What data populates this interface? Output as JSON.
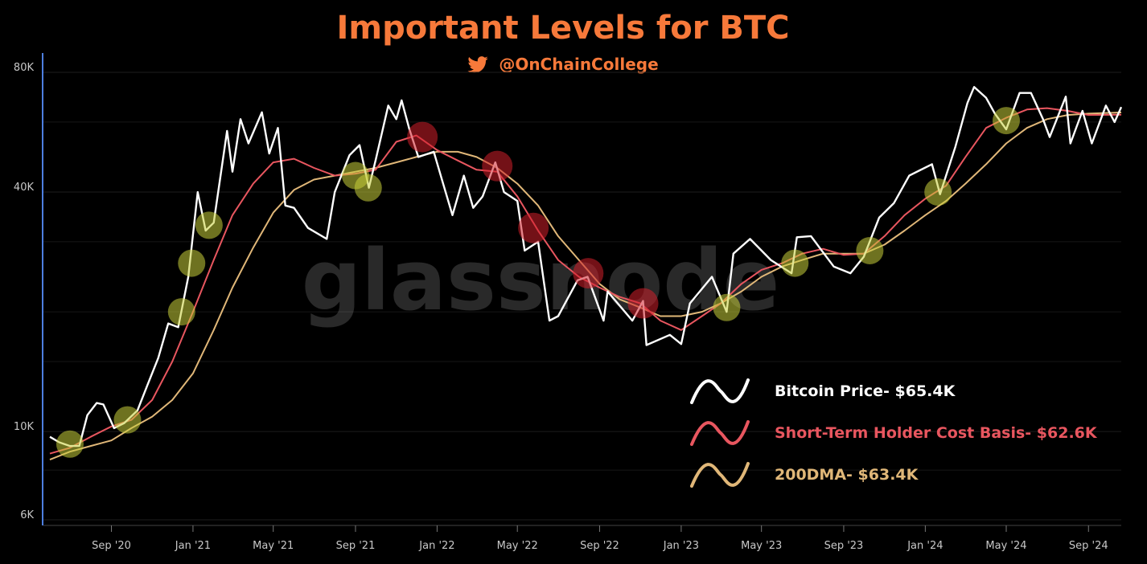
{
  "header": {
    "title": "Important Levels for BTC",
    "handle": "@OnChainCollege",
    "title_color": "#f7793a",
    "handle_icon": "twitter-bird-icon"
  },
  "watermark": {
    "text": "glassnode"
  },
  "chart_data": {
    "type": "line",
    "title": "Important Levels for BTC",
    "y_scale": "log",
    "ylim": [
      6000,
      80000
    ],
    "y_ticks": [
      {
        "value": 80000,
        "label": "80K"
      },
      {
        "value": 40000,
        "label": "40K"
      },
      {
        "value": 10000,
        "label": "10K"
      },
      {
        "value": 6000,
        "label": "6K"
      }
    ],
    "xlim": [
      "2020-06-01",
      "2024-10-20"
    ],
    "x_ticks": [
      {
        "date": "2020-09-01",
        "label": "Sep '20"
      },
      {
        "date": "2021-01-01",
        "label": "Jan '21"
      },
      {
        "date": "2021-05-01",
        "label": "May '21"
      },
      {
        "date": "2021-09-01",
        "label": "Sep '21"
      },
      {
        "date": "2022-01-01",
        "label": "Jan '22"
      },
      {
        "date": "2022-05-01",
        "label": "May '22"
      },
      {
        "date": "2022-09-01",
        "label": "Sep '22"
      },
      {
        "date": "2023-01-01",
        "label": "Jan '23"
      },
      {
        "date": "2023-05-01",
        "label": "May '23"
      },
      {
        "date": "2023-09-01",
        "label": "Sep '23"
      },
      {
        "date": "2024-01-01",
        "label": "Jan '24"
      },
      {
        "date": "2024-05-01",
        "label": "May '24"
      },
      {
        "date": "2024-09-01",
        "label": "Sep '24"
      }
    ],
    "grid": true,
    "legend_position": "bottom-right",
    "series": [
      {
        "name": "Bitcoin Price- $65.4K",
        "color": "#ffffff",
        "points": [
          [
            "2020-06-01",
            9700
          ],
          [
            "2020-06-15",
            9400
          ],
          [
            "2020-07-01",
            9200
          ],
          [
            "2020-07-15",
            9200
          ],
          [
            "2020-07-27",
            11000
          ],
          [
            "2020-08-10",
            11800
          ],
          [
            "2020-08-20",
            11700
          ],
          [
            "2020-09-05",
            10200
          ],
          [
            "2020-09-20",
            10500
          ],
          [
            "2020-10-10",
            11300
          ],
          [
            "2020-10-25",
            13100
          ],
          [
            "2020-11-10",
            15300
          ],
          [
            "2020-11-25",
            18700
          ],
          [
            "2020-12-10",
            18300
          ],
          [
            "2020-12-25",
            24500
          ],
          [
            "2021-01-08",
            40000
          ],
          [
            "2021-01-20",
            32000
          ],
          [
            "2021-02-01",
            33500
          ],
          [
            "2021-02-21",
            57000
          ],
          [
            "2021-03-01",
            45000
          ],
          [
            "2021-03-13",
            61000
          ],
          [
            "2021-03-25",
            53000
          ],
          [
            "2021-04-14",
            63500
          ],
          [
            "2021-04-25",
            50000
          ],
          [
            "2021-05-08",
            58000
          ],
          [
            "2021-05-19",
            37000
          ],
          [
            "2021-06-01",
            36500
          ],
          [
            "2021-06-22",
            32500
          ],
          [
            "2021-07-20",
            30500
          ],
          [
            "2021-08-01",
            40000
          ],
          [
            "2021-08-23",
            49500
          ],
          [
            "2021-09-07",
            52500
          ],
          [
            "2021-09-21",
            41000
          ],
          [
            "2021-10-01",
            48000
          ],
          [
            "2021-10-20",
            66000
          ],
          [
            "2021-11-01",
            61000
          ],
          [
            "2021-11-09",
            68000
          ],
          [
            "2021-11-20",
            58000
          ],
          [
            "2021-12-04",
            49000
          ],
          [
            "2021-12-27",
            50500
          ],
          [
            "2022-01-10",
            42000
          ],
          [
            "2022-01-24",
            35000
          ],
          [
            "2022-02-10",
            44000
          ],
          [
            "2022-02-24",
            36500
          ],
          [
            "2022-03-10",
            39000
          ],
          [
            "2022-03-29",
            47500
          ],
          [
            "2022-04-11",
            40000
          ],
          [
            "2022-05-01",
            38000
          ],
          [
            "2022-05-12",
            28500
          ],
          [
            "2022-06-01",
            30000
          ],
          [
            "2022-06-18",
            19000
          ],
          [
            "2022-07-01",
            19500
          ],
          [
            "2022-07-30",
            24000
          ],
          [
            "2022-08-14",
            24500
          ],
          [
            "2022-09-07",
            19000
          ],
          [
            "2022-09-13",
            22500
          ],
          [
            "2022-10-20",
            19000
          ],
          [
            "2022-11-05",
            21300
          ],
          [
            "2022-11-10",
            16500
          ],
          [
            "2022-12-15",
            17500
          ],
          [
            "2023-01-01",
            16600
          ],
          [
            "2023-01-14",
            21000
          ],
          [
            "2023-02-16",
            24500
          ],
          [
            "2023-03-10",
            20000
          ],
          [
            "2023-03-20",
            28000
          ],
          [
            "2023-04-14",
            30500
          ],
          [
            "2023-05-15",
            27000
          ],
          [
            "2023-06-15",
            25000
          ],
          [
            "2023-06-23",
            30800
          ],
          [
            "2023-07-14",
            31000
          ],
          [
            "2023-08-17",
            26000
          ],
          [
            "2023-09-11",
            25000
          ],
          [
            "2023-10-01",
            27500
          ],
          [
            "2023-10-24",
            34500
          ],
          [
            "2023-11-15",
            37500
          ],
          [
            "2023-12-08",
            44000
          ],
          [
            "2024-01-11",
            47000
          ],
          [
            "2024-01-23",
            39500
          ],
          [
            "2024-02-15",
            52000
          ],
          [
            "2024-03-04",
            67000
          ],
          [
            "2024-03-14",
            73500
          ],
          [
            "2024-04-01",
            69000
          ],
          [
            "2024-04-14",
            63000
          ],
          [
            "2024-05-01",
            57500
          ],
          [
            "2024-05-21",
            71000
          ],
          [
            "2024-06-07",
            71000
          ],
          [
            "2024-06-25",
            61000
          ],
          [
            "2024-07-05",
            55000
          ],
          [
            "2024-07-29",
            69500
          ],
          [
            "2024-08-05",
            53000
          ],
          [
            "2024-08-23",
            64000
          ],
          [
            "2024-09-06",
            53000
          ],
          [
            "2024-09-27",
            66000
          ],
          [
            "2024-10-10",
            60000
          ],
          [
            "2024-10-20",
            65400
          ]
        ]
      },
      {
        "name": "Short-Term Holder Cost Basis- $62.6K",
        "color": "#e8565f",
        "points": [
          [
            "2020-06-01",
            8800
          ],
          [
            "2020-07-01",
            9100
          ],
          [
            "2020-08-01",
            9700
          ],
          [
            "2020-09-01",
            10300
          ],
          [
            "2020-10-01",
            10700
          ],
          [
            "2020-11-01",
            12000
          ],
          [
            "2020-12-01",
            15000
          ],
          [
            "2021-01-01",
            20000
          ],
          [
            "2021-02-01",
            27000
          ],
          [
            "2021-03-01",
            35000
          ],
          [
            "2021-04-01",
            42000
          ],
          [
            "2021-05-01",
            47500
          ],
          [
            "2021-06-01",
            48500
          ],
          [
            "2021-07-01",
            46000
          ],
          [
            "2021-08-01",
            44000
          ],
          [
            "2021-09-01",
            44500
          ],
          [
            "2021-10-01",
            45500
          ],
          [
            "2021-11-01",
            53500
          ],
          [
            "2021-12-01",
            55500
          ],
          [
            "2022-01-01",
            51000
          ],
          [
            "2022-02-01",
            48000
          ],
          [
            "2022-03-01",
            45500
          ],
          [
            "2022-04-01",
            45000
          ],
          [
            "2022-05-01",
            39000
          ],
          [
            "2022-06-01",
            32000
          ],
          [
            "2022-07-01",
            27000
          ],
          [
            "2022-08-01",
            24500
          ],
          [
            "2022-09-01",
            23000
          ],
          [
            "2022-10-01",
            21800
          ],
          [
            "2022-11-01",
            21000
          ],
          [
            "2022-12-01",
            19000
          ],
          [
            "2023-01-01",
            18000
          ],
          [
            "2023-02-01",
            19500
          ],
          [
            "2023-03-01",
            21000
          ],
          [
            "2023-04-01",
            23500
          ],
          [
            "2023-05-01",
            25500
          ],
          [
            "2023-06-01",
            26500
          ],
          [
            "2023-07-01",
            28000
          ],
          [
            "2023-08-01",
            28800
          ],
          [
            "2023-09-01",
            27800
          ],
          [
            "2023-10-01",
            28000
          ],
          [
            "2023-11-01",
            31000
          ],
          [
            "2023-12-01",
            35000
          ],
          [
            "2024-01-01",
            38500
          ],
          [
            "2024-02-01",
            41500
          ],
          [
            "2024-03-01",
            49000
          ],
          [
            "2024-04-01",
            58000
          ],
          [
            "2024-05-01",
            61500
          ],
          [
            "2024-06-01",
            64500
          ],
          [
            "2024-07-01",
            65000
          ],
          [
            "2024-08-01",
            64000
          ],
          [
            "2024-09-01",
            62500
          ],
          [
            "2024-10-20",
            62600
          ]
        ]
      },
      {
        "name": "200DMA- $63.4K",
        "color": "#e0b778",
        "points": [
          [
            "2020-06-01",
            8500
          ],
          [
            "2020-07-01",
            8900
          ],
          [
            "2020-08-01",
            9200
          ],
          [
            "2020-09-01",
            9500
          ],
          [
            "2020-10-01",
            10200
          ],
          [
            "2020-11-01",
            10900
          ],
          [
            "2020-12-01",
            12000
          ],
          [
            "2021-01-01",
            14000
          ],
          [
            "2021-02-01",
            18000
          ],
          [
            "2021-03-01",
            23000
          ],
          [
            "2021-04-01",
            29000
          ],
          [
            "2021-05-01",
            35500
          ],
          [
            "2021-06-01",
            40500
          ],
          [
            "2021-07-01",
            43000
          ],
          [
            "2021-08-01",
            44000
          ],
          [
            "2021-09-01",
            45000
          ],
          [
            "2021-10-01",
            46000
          ],
          [
            "2021-11-01",
            47500
          ],
          [
            "2021-12-01",
            49000
          ],
          [
            "2022-01-01",
            50500
          ],
          [
            "2022-02-01",
            50500
          ],
          [
            "2022-03-01",
            49000
          ],
          [
            "2022-04-01",
            46000
          ],
          [
            "2022-05-01",
            42000
          ],
          [
            "2022-06-01",
            37000
          ],
          [
            "2022-07-01",
            31000
          ],
          [
            "2022-08-01",
            27000
          ],
          [
            "2022-09-01",
            23500
          ],
          [
            "2022-10-01",
            21500
          ],
          [
            "2022-11-01",
            20500
          ],
          [
            "2022-12-01",
            19500
          ],
          [
            "2023-01-01",
            19500
          ],
          [
            "2023-02-01",
            20000
          ],
          [
            "2023-03-01",
            21000
          ],
          [
            "2023-04-01",
            22500
          ],
          [
            "2023-05-01",
            24500
          ],
          [
            "2023-06-01",
            26000
          ],
          [
            "2023-07-01",
            27000
          ],
          [
            "2023-08-01",
            28000
          ],
          [
            "2023-09-01",
            28000
          ],
          [
            "2023-10-01",
            28000
          ],
          [
            "2023-11-01",
            29500
          ],
          [
            "2023-12-01",
            32000
          ],
          [
            "2024-01-01",
            35000
          ],
          [
            "2024-02-01",
            38000
          ],
          [
            "2024-03-01",
            42000
          ],
          [
            "2024-04-01",
            47000
          ],
          [
            "2024-05-01",
            53000
          ],
          [
            "2024-06-01",
            58000
          ],
          [
            "2024-07-01",
            61000
          ],
          [
            "2024-08-01",
            62500
          ],
          [
            "2024-09-01",
            63000
          ],
          [
            "2024-10-20",
            63400
          ]
        ]
      }
    ],
    "annotations": {
      "support_color": "#c9cf3a",
      "resistance_color": "#d11f2a",
      "support_touches": [
        [
          "2020-07-01",
          9300
        ],
        [
          "2020-09-25",
          10700
        ],
        [
          "2020-12-15",
          20000
        ],
        [
          "2020-12-30",
          26500
        ],
        [
          "2021-01-25",
          33000
        ],
        [
          "2021-09-01",
          44000
        ],
        [
          "2021-09-20",
          41000
        ],
        [
          "2023-03-10",
          20500
        ],
        [
          "2023-06-20",
          26500
        ],
        [
          "2023-10-10",
          28500
        ],
        [
          "2024-01-20",
          40000
        ],
        [
          "2024-05-01",
          60500
        ]
      ],
      "resistance_touches": [
        [
          "2021-12-10",
          55000
        ],
        [
          "2022-04-01",
          46500
        ],
        [
          "2022-05-25",
          32500
        ],
        [
          "2022-08-15",
          25000
        ],
        [
          "2022-11-05",
          21000
        ]
      ]
    }
  }
}
